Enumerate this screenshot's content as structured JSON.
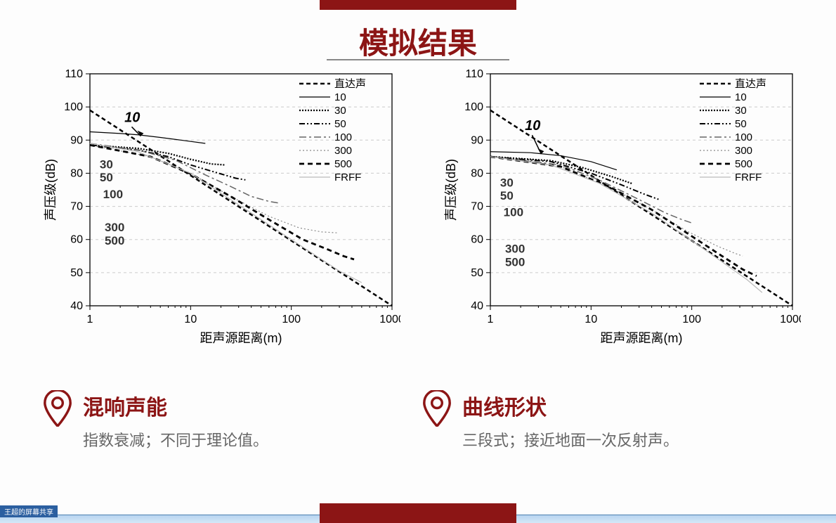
{
  "title": "模拟结果",
  "chart_common": {
    "type": "line",
    "x_scale": "log",
    "y_scale": "linear",
    "xlim": [
      1,
      1000
    ],
    "ylim": [
      40,
      110
    ],
    "x_ticks": [
      1,
      10,
      100,
      1000
    ],
    "y_ticks": [
      40,
      50,
      60,
      70,
      80,
      90,
      100,
      110
    ],
    "x_label": "距声源距离(m)",
    "y_label": "声压级(dB)",
    "axis_color": "#000000",
    "grid_color": "#cccccc",
    "background_color": "#ffffff",
    "label_fontsize": 18,
    "tick_fontsize": 16,
    "line_width": 2.0,
    "legend_position": "top-right",
    "legend_items": [
      {
        "label": "直达声",
        "dash": "6,4",
        "color": "#000",
        "width": 2.5
      },
      {
        "label": "10",
        "dash": "",
        "color": "#000",
        "width": 1.2
      },
      {
        "label": "30",
        "dash": "2,2",
        "color": "#000",
        "width": 2.2
      },
      {
        "label": "50",
        "dash": "8,3,2,3,2,3",
        "color": "#000",
        "width": 2.0
      },
      {
        "label": "100",
        "dash": "10,4,3,4",
        "color": "#666",
        "width": 1.5
      },
      {
        "label": "300",
        "dash": "2,3",
        "color": "#888",
        "width": 1.2
      },
      {
        "label": "500",
        "dash": "7,5",
        "color": "#000",
        "width": 2.8
      },
      {
        "label": "FRFF",
        "dash": "",
        "color": "#bbb",
        "width": 1.2
      }
    ],
    "inline_labels": [
      "10",
      "30",
      "50",
      "100",
      "300",
      "500"
    ]
  },
  "left_chart": {
    "series": {
      "direct": [
        [
          1,
          99
        ],
        [
          1000,
          40
        ]
      ],
      "s10": [
        [
          1,
          92.5
        ],
        [
          2,
          92
        ],
        [
          3,
          91.6
        ],
        [
          5,
          90.8
        ],
        [
          8,
          90
        ],
        [
          14,
          89
        ]
      ],
      "s30": [
        [
          1,
          88.5
        ],
        [
          3,
          87.5
        ],
        [
          6,
          86
        ],
        [
          10,
          84.2
        ],
        [
          16,
          82.8
        ],
        [
          22,
          82.5
        ]
      ],
      "s50": [
        [
          1,
          88.5
        ],
        [
          3,
          87
        ],
        [
          6,
          85
        ],
        [
          10,
          82.5
        ],
        [
          18,
          80.2
        ],
        [
          28,
          78.5
        ],
        [
          35,
          78
        ]
      ],
      "s100": [
        [
          1,
          89
        ],
        [
          3,
          87
        ],
        [
          7,
          84
        ],
        [
          14,
          79.5
        ],
        [
          25,
          76
        ],
        [
          40,
          73
        ],
        [
          60,
          71.5
        ],
        [
          75,
          71
        ]
      ],
      "s300": [
        [
          1,
          88.5
        ],
        [
          4,
          85
        ],
        [
          10,
          80
        ],
        [
          25,
          73
        ],
        [
          60,
          67
        ],
        [
          120,
          63.5
        ],
        [
          200,
          62.3
        ],
        [
          290,
          62
        ]
      ],
      "s500": [
        [
          1,
          88.5
        ],
        [
          4,
          85
        ],
        [
          10,
          79.8
        ],
        [
          25,
          73
        ],
        [
          60,
          66
        ],
        [
          130,
          60
        ],
        [
          230,
          57
        ],
        [
          330,
          55
        ],
        [
          420,
          54
        ]
      ],
      "frff": [
        [
          1,
          89
        ],
        [
          3,
          86.5
        ],
        [
          10,
          80
        ],
        [
          30,
          70.5
        ],
        [
          100,
          60
        ],
        [
          300,
          50.5
        ],
        [
          500,
          47
        ]
      ]
    }
  },
  "right_chart": {
    "series": {
      "direct": [
        [
          1,
          99
        ],
        [
          1000,
          40
        ]
      ],
      "s10": [
        [
          1,
          86.5
        ],
        [
          2.5,
          86.2
        ],
        [
          5,
          85.3
        ],
        [
          10,
          83.5
        ],
        [
          18,
          81
        ]
      ],
      "s30": [
        [
          1,
          85
        ],
        [
          4,
          83.8
        ],
        [
          8,
          81.8
        ],
        [
          16,
          79
        ],
        [
          26,
          76.8
        ]
      ],
      "s50": [
        [
          1,
          85
        ],
        [
          4,
          83.5
        ],
        [
          10,
          80
        ],
        [
          20,
          76.5
        ],
        [
          35,
          73.5
        ],
        [
          48,
          72
        ]
      ],
      "s100": [
        [
          1,
          85
        ],
        [
          5,
          82.5
        ],
        [
          12,
          78
        ],
        [
          28,
          72.5
        ],
        [
          55,
          68
        ],
        [
          80,
          66
        ],
        [
          100,
          65
        ]
      ],
      "s300": [
        [
          1,
          85
        ],
        [
          5,
          82
        ],
        [
          15,
          76
        ],
        [
          40,
          69
        ],
        [
          90,
          62.5
        ],
        [
          180,
          58
        ],
        [
          260,
          56
        ],
        [
          320,
          55
        ]
      ],
      "s500": [
        [
          1,
          85
        ],
        [
          5,
          82
        ],
        [
          15,
          76
        ],
        [
          40,
          69
        ],
        [
          100,
          61
        ],
        [
          200,
          55
        ],
        [
          320,
          51
        ],
        [
          440,
          49
        ]
      ],
      "frff": [
        [
          1,
          85
        ],
        [
          4,
          82.5
        ],
        [
          12,
          77
        ],
        [
          40,
          68
        ],
        [
          120,
          58
        ],
        [
          350,
          48
        ],
        [
          500,
          44
        ]
      ]
    }
  },
  "points": {
    "left": {
      "heading": "混响声能",
      "body": "指数衰减；不同于理论值。"
    },
    "right": {
      "heading": "曲线形状",
      "body": "三段式；接近地面一次反射声。"
    }
  },
  "colors": {
    "accent": "#8c1515",
    "text_muted": "#666666"
  },
  "footer_tag": "王超的屏幕共享"
}
